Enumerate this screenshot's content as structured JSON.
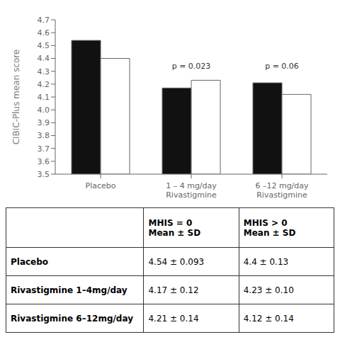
{
  "chart_data": {
    "type": "bar",
    "categories": [
      "Placebo",
      "1 – 4 mg/day\nRivastigmine",
      "6 –12 mg/day\nRivastigmine"
    ],
    "series": [
      {
        "color": "#111111",
        "values": [
          4.54,
          4.17,
          4.21
        ]
      },
      {
        "color": "#ffffff",
        "values": [
          4.4,
          4.23,
          4.12
        ]
      }
    ],
    "ylabel": "CIBIC-Plus mean score",
    "ylim": [
      3.5,
      4.7
    ],
    "yticks": [
      3.5,
      3.6,
      3.7,
      3.8,
      3.9,
      {
        "value": 4.0,
        "label": "4.0"
      },
      4.1,
      4.2,
      4.3,
      4.4,
      4.5,
      4.6,
      4.7
    ],
    "grid": false,
    "annotations": [
      {
        "text": "p = 0.023",
        "category": "1 – 4 mg/day\nRivastigmine",
        "y": 4.295
      },
      {
        "text": "p = 0.06",
        "category": "6 –12 mg/day\nRivastigmine",
        "y": 4.295
      }
    ],
    "table": {
      "col_headers": [
        [
          "MHIS = 0",
          "Mean ± SD"
        ],
        [
          "MHIS > 0",
          "Mean ± SD"
        ]
      ],
      "row_labels": [
        "Placebo",
        "Rivastigmine 1–4mg/day",
        "Rivastigmine 6–12mg/day"
      ],
      "cells": [
        [
          "4.54 ± 0.093",
          "4.4 ± 0.13"
        ],
        [
          "4.17 ± 0.12",
          "4.23 ± 0.10"
        ],
        [
          "4.21 ± 0.14",
          "4.12 ± 0.14"
        ]
      ]
    }
  }
}
